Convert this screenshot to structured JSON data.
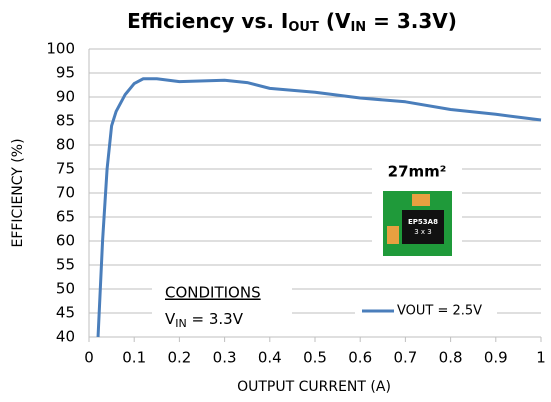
{
  "chart_data": {
    "type": "line",
    "title": [
      "Efficiency vs. I",
      "OUT",
      " (V",
      "IN",
      " = 3.3V)"
    ],
    "xlabel": "OUTPUT CURRENT (A)",
    "ylabel": "EFFICIENCY (%)",
    "x": [
      0.02,
      0.03,
      0.04,
      0.05,
      0.06,
      0.08,
      0.1,
      0.12,
      0.15,
      0.2,
      0.3,
      0.35,
      0.4,
      0.5,
      0.6,
      0.7,
      0.8,
      0.9,
      1.0
    ],
    "series": [
      {
        "name": "VOUT = 2.5V",
        "color": "#4a7ebb",
        "values": [
          40,
          60,
          75,
          84,
          87,
          90.5,
          92.8,
          93.8,
          93.8,
          93.2,
          93.5,
          93,
          91.8,
          91,
          89.8,
          89,
          87.4,
          86.4,
          85.2
        ]
      }
    ],
    "xlim": [
      0,
      1
    ],
    "xticks": [
      0,
      0.1,
      0.2,
      0.3,
      0.4,
      0.5,
      0.6,
      0.7,
      0.8,
      0.9,
      1
    ],
    "ylim": [
      40,
      100
    ],
    "yticks": [
      40,
      45,
      50,
      55,
      60,
      65,
      70,
      75,
      80,
      85,
      90,
      95,
      100
    ],
    "grid": true,
    "legend": "lower right",
    "annotations": {
      "conditions": "CONDITIONS",
      "vin": [
        "V",
        "IN",
        " = 3.3V"
      ],
      "area": "27mm²",
      "chip": [
        "EP53A8",
        "3 x 3"
      ]
    }
  }
}
